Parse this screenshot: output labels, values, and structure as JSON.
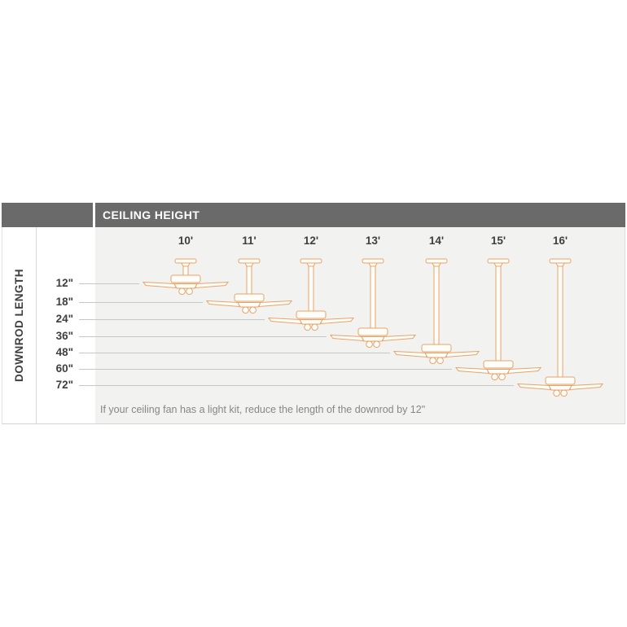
{
  "table": {
    "corner_label": "DOWNROD LENGTH",
    "header_label": "CEILING HEIGHT"
  },
  "chart_data": {
    "type": "table",
    "title": "CEILING HEIGHT",
    "xlabel": "CEILING HEIGHT",
    "ylabel": "DOWNROD LENGTH",
    "columns": [
      "10'",
      "11'",
      "12'",
      "13'",
      "14'",
      "15'",
      "16'"
    ],
    "rows": [
      "12\"",
      "18\"",
      "24\"",
      "36\"",
      "48\"",
      "60\"",
      "72\""
    ],
    "mapping": [
      {
        "ceiling_height": "10'",
        "downrod_length": "12\""
      },
      {
        "ceiling_height": "11'",
        "downrod_length": "18\""
      },
      {
        "ceiling_height": "12'",
        "downrod_length": "24\""
      },
      {
        "ceiling_height": "13'",
        "downrod_length": "36\""
      },
      {
        "ceiling_height": "14'",
        "downrod_length": "48\""
      },
      {
        "ceiling_height": "15'",
        "downrod_length": "60\""
      },
      {
        "ceiling_height": "16'",
        "downrod_length": "72\""
      }
    ],
    "note": "If your ceiling fan has a light kit, reduce the length of the downrod by 12\"",
    "legend": "none",
    "grid": "leader lines per row"
  },
  "colors": {
    "header_bar": "#6a6a6a",
    "header_text": "#ffffff",
    "chart_background": "#f2f2f1",
    "label_text": "#3f3f3f",
    "note_text": "#878787",
    "leader_line": "#c7c7c7",
    "border": "#d4d4d4",
    "fan_outline": "#e7a366",
    "fan_fill": "#fffdfa"
  },
  "icons": {
    "fan": "ceiling-fan-icon"
  }
}
